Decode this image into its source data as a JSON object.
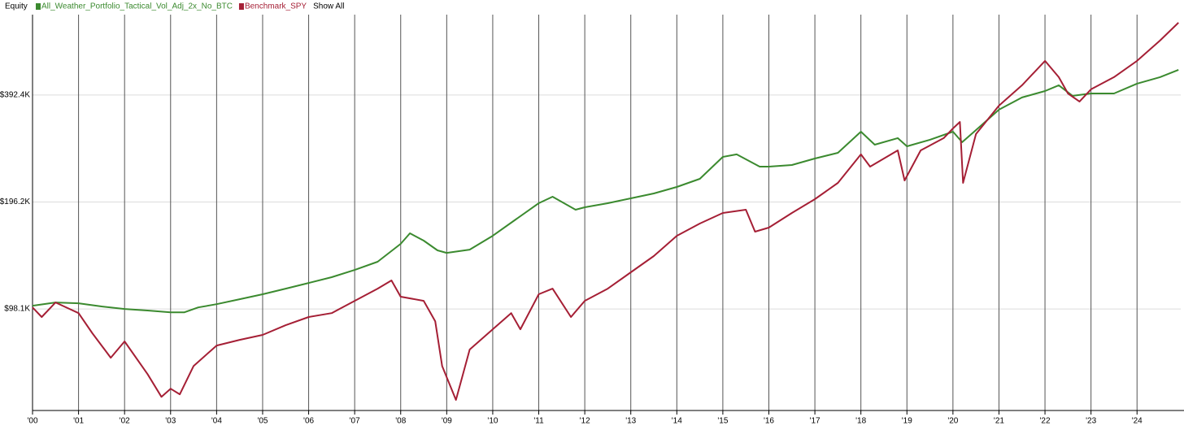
{
  "chart_data": {
    "type": "line",
    "legend_title": "Equity",
    "show_all_label": "Show All",
    "ylog": true,
    "grid": true,
    "xlim": [
      2000,
      2024.95
    ],
    "ylim": [
      50800,
      647000
    ],
    "yticks": [
      {
        "value": 98100,
        "label": "$98.1K"
      },
      {
        "value": 196200,
        "label": "$196.2K"
      },
      {
        "value": 392400,
        "label": "$392.4K"
      }
    ],
    "xticks": [
      {
        "value": 2000,
        "label": "'00"
      },
      {
        "value": 2001,
        "label": "'01"
      },
      {
        "value": 2002,
        "label": "'02"
      },
      {
        "value": 2003,
        "label": "'03"
      },
      {
        "value": 2004,
        "label": "'04"
      },
      {
        "value": 2005,
        "label": "'05"
      },
      {
        "value": 2006,
        "label": "'06"
      },
      {
        "value": 2007,
        "label": "'07"
      },
      {
        "value": 2008,
        "label": "'08"
      },
      {
        "value": 2009,
        "label": "'09"
      },
      {
        "value": 2010,
        "label": "'10"
      },
      {
        "value": 2011,
        "label": "'11"
      },
      {
        "value": 2012,
        "label": "'12"
      },
      {
        "value": 2013,
        "label": "'13"
      },
      {
        "value": 2014,
        "label": "'14"
      },
      {
        "value": 2015,
        "label": "'15"
      },
      {
        "value": 2016,
        "label": "'16"
      },
      {
        "value": 2017,
        "label": "'17"
      },
      {
        "value": 2018,
        "label": "'18"
      },
      {
        "value": 2019,
        "label": "'19"
      },
      {
        "value": 2020,
        "label": "'20"
      },
      {
        "value": 2021,
        "label": "'21"
      },
      {
        "value": 2022,
        "label": "'22"
      },
      {
        "value": 2023,
        "label": "'23"
      },
      {
        "value": 2024,
        "label": "'24"
      }
    ],
    "series": [
      {
        "name": "All_Weather_Portfolio_Tactical_Vol_Adj_2x_No_BTC",
        "color": "#3b8a2f",
        "x": [
          2000,
          2000.5,
          2001,
          2001.5,
          2002,
          2002.5,
          2003,
          2003.3,
          2003.6,
          2004,
          2004.5,
          2005,
          2005.5,
          2006,
          2006.5,
          2007,
          2007.5,
          2008,
          2008.2,
          2008.5,
          2008.8,
          2009,
          2009.5,
          2010,
          2010.5,
          2011,
          2011.3,
          2011.8,
          2012,
          2012.5,
          2013,
          2013.5,
          2014,
          2014.5,
          2015,
          2015.3,
          2015.8,
          2016,
          2016.5,
          2017,
          2017.5,
          2018,
          2018.3,
          2018.8,
          2019,
          2019.5,
          2020,
          2020.2,
          2020.5,
          2021,
          2021.5,
          2022,
          2022.3,
          2022.6,
          2023,
          2023.5,
          2024,
          2024.5,
          2024.9
        ],
        "values": [
          100200,
          102300,
          101800,
          99700,
          98100,
          97100,
          96000,
          96000,
          99100,
          101200,
          104500,
          107900,
          111900,
          116100,
          120500,
          126300,
          133200,
          149600,
          160200,
          152800,
          143400,
          141100,
          144100,
          157600,
          175200,
          194700,
          203000,
          186600,
          189600,
          194700,
          200900,
          207400,
          216300,
          228000,
          262900,
          267100,
          246700,
          246700,
          249400,
          260100,
          269900,
          309500,
          284500,
          296800,
          281500,
          293700,
          309500,
          289100,
          312800,
          356900,
          386200,
          402800,
          418000,
          390300,
          396500,
          396500,
          422400,
          440600,
          462000
        ]
      },
      {
        "name": "Benchmark_SPY",
        "color": "#a51f35",
        "x": [
          2000,
          2000.2,
          2000.5,
          2001,
          2001.3,
          2001.7,
          2002,
          2002.5,
          2002.8,
          2003,
          2003.2,
          2003.5,
          2004,
          2004.5,
          2005,
          2005.5,
          2006,
          2006.5,
          2007,
          2007.5,
          2007.8,
          2008,
          2008.5,
          2008.75,
          2008.9,
          2009.2,
          2009.5,
          2010,
          2010.4,
          2010.6,
          2011,
          2011.3,
          2011.7,
          2012,
          2012.5,
          2013,
          2013.5,
          2014,
          2014.5,
          2015,
          2015.5,
          2015.7,
          2016,
          2016.5,
          2017,
          2017.5,
          2018,
          2018.2,
          2018.8,
          2018.95,
          2019.3,
          2019.8,
          2020,
          2020.15,
          2020.22,
          2020.5,
          2021,
          2021.5,
          2022,
          2022.3,
          2022.5,
          2022.75,
          2023,
          2023.5,
          2024,
          2024.5,
          2024.9
        ],
        "values": [
          99100,
          93100,
          102300,
          95500,
          83800,
          71500,
          79500,
          64300,
          55500,
          58500,
          56400,
          67800,
          77400,
          80300,
          82900,
          88300,
          93100,
          95500,
          103400,
          111900,
          118000,
          106200,
          103400,
          90600,
          67800,
          54400,
          75400,
          86000,
          95500,
          86000,
          107900,
          111900,
          93100,
          103400,
          111900,
          124400,
          138200,
          157600,
          170600,
          182700,
          186600,
          161900,
          166200,
          182700,
          199900,
          222100,
          267100,
          246700,
          274200,
          225600,
          274200,
          296800,
          316100,
          329700,
          222100,
          304700,
          366400,
          418000,
          489700,
          440600,
          396500,
          376200,
          407100,
          440600,
          489700,
          558600,
          627300
        ]
      }
    ]
  }
}
